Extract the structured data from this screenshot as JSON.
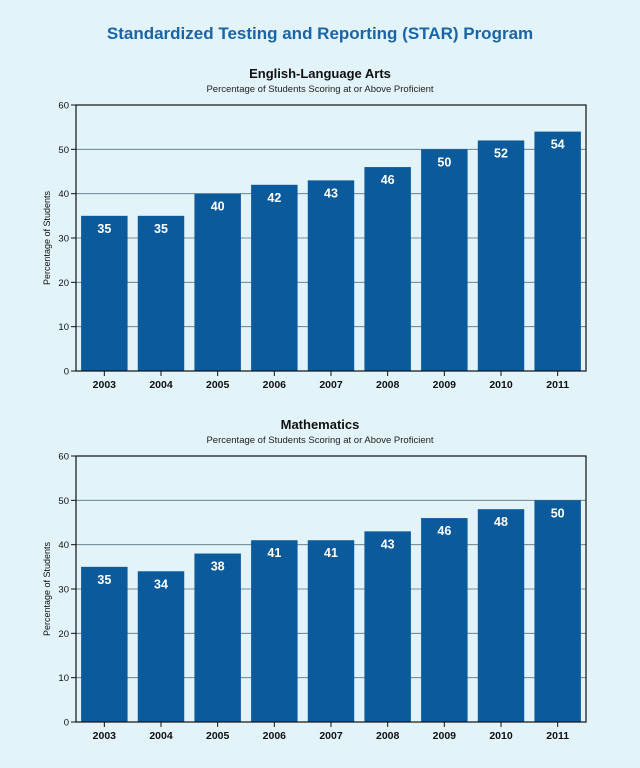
{
  "page": {
    "title": "Standardized Testing and Reporting (STAR) Program"
  },
  "colors": {
    "background": "#e2f3fa",
    "title": "#1a64a8",
    "bar": "#0b5a9c",
    "gridline": "#5a7280"
  },
  "chart_data": [
    {
      "type": "bar",
      "title": "English-Language Arts",
      "subtitle": "Percentage of Students Scoring at or Above Proficient",
      "xlabel": "",
      "ylabel": "Percentage of Students",
      "categories": [
        "2003",
        "2004",
        "2005",
        "2006",
        "2007",
        "2008",
        "2009",
        "2010",
        "2011"
      ],
      "values": [
        35,
        35,
        40,
        42,
        43,
        46,
        50,
        52,
        54
      ],
      "ylim": [
        0,
        60
      ],
      "yticks": [
        0,
        10,
        20,
        30,
        40,
        50,
        60
      ],
      "grid": true,
      "legend": "none"
    },
    {
      "type": "bar",
      "title": "Mathematics",
      "subtitle": "Percentage of Students Scoring at or Above Proficient",
      "xlabel": "",
      "ylabel": "Percentage of Students",
      "categories": [
        "2003",
        "2004",
        "2005",
        "2006",
        "2007",
        "2008",
        "2009",
        "2010",
        "2011"
      ],
      "values": [
        35,
        34,
        38,
        41,
        41,
        43,
        46,
        48,
        50
      ],
      "ylim": [
        0,
        60
      ],
      "yticks": [
        0,
        10,
        20,
        30,
        40,
        50,
        60
      ],
      "grid": true,
      "legend": "none"
    }
  ]
}
